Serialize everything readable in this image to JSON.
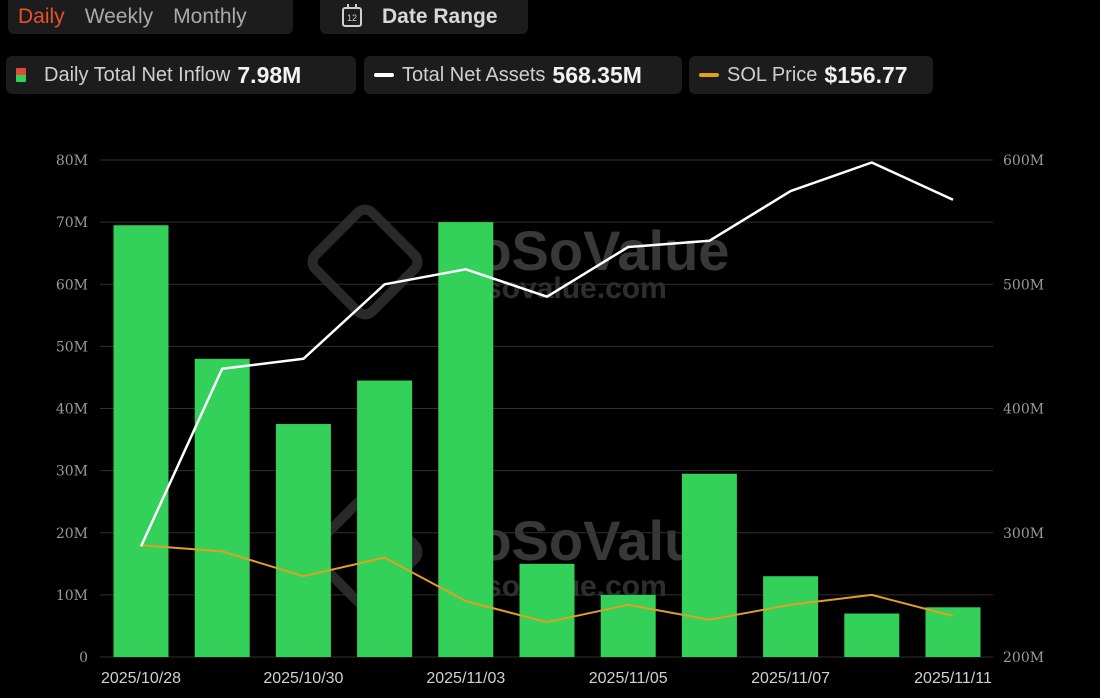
{
  "period_tabs": [
    "Daily",
    "Weekly",
    "Monthly"
  ],
  "active_tab": "Daily",
  "date_range": {
    "label": "Date Range",
    "icon": "calendar-icon",
    "icon_day": "12"
  },
  "legend": [
    {
      "name": "Daily Total Net Inflow",
      "value": "7.98M",
      "swatch": "bar",
      "color": "#33d15a",
      "color2": "#e04a3a"
    },
    {
      "name": "Total Net Assets",
      "value": "568.35M",
      "swatch": "line",
      "color": "#ffffff"
    },
    {
      "name": "SOL Price",
      "value": "$156.77",
      "swatch": "line",
      "color": "#e0a020"
    }
  ],
  "watermark": {
    "brand": "SoSoValue",
    "site": "sosovalue.com"
  },
  "chart_data": {
    "type": "bar",
    "x": [
      "2025/10/28",
      "2025/10/29",
      "2025/10/30",
      "2025/10/31",
      "2025/11/03",
      "2025/11/04",
      "2025/11/05",
      "2025/11/06",
      "2025/11/07",
      "2025/11/10",
      "2025/11/11"
    ],
    "xtick_labels": [
      "2025/10/28",
      "2025/10/30",
      "2025/11/03",
      "2025/11/05",
      "2025/11/07",
      "2025/11/11"
    ],
    "series": [
      {
        "name": "Daily Total Net Inflow",
        "type": "bar",
        "axis": "left",
        "color": "#33d15a",
        "values": [
          69.5,
          48,
          37.5,
          44.5,
          70,
          15,
          10,
          29.5,
          13,
          7,
          8
        ]
      },
      {
        "name": "Total Net Assets",
        "type": "line",
        "axis": "right",
        "color": "#ffffff",
        "values": [
          289,
          432,
          440,
          500,
          512,
          490,
          530,
          535,
          575,
          598,
          568
        ]
      },
      {
        "name": "SOL Price",
        "type": "line",
        "axis": "right",
        "color": "#e0a020",
        "values": [
          290,
          285,
          265,
          280,
          245,
          228,
          242,
          230,
          242,
          250,
          233
        ]
      }
    ],
    "y_left": {
      "ticks": [
        "0",
        "10M",
        "20M",
        "30M",
        "40M",
        "50M",
        "60M",
        "70M",
        "80M"
      ],
      "range": [
        0,
        80
      ]
    },
    "y_right": {
      "ticks": [
        "200M",
        "300M",
        "400M",
        "500M",
        "600M"
      ],
      "range": [
        200,
        600
      ]
    },
    "grid": true
  }
}
